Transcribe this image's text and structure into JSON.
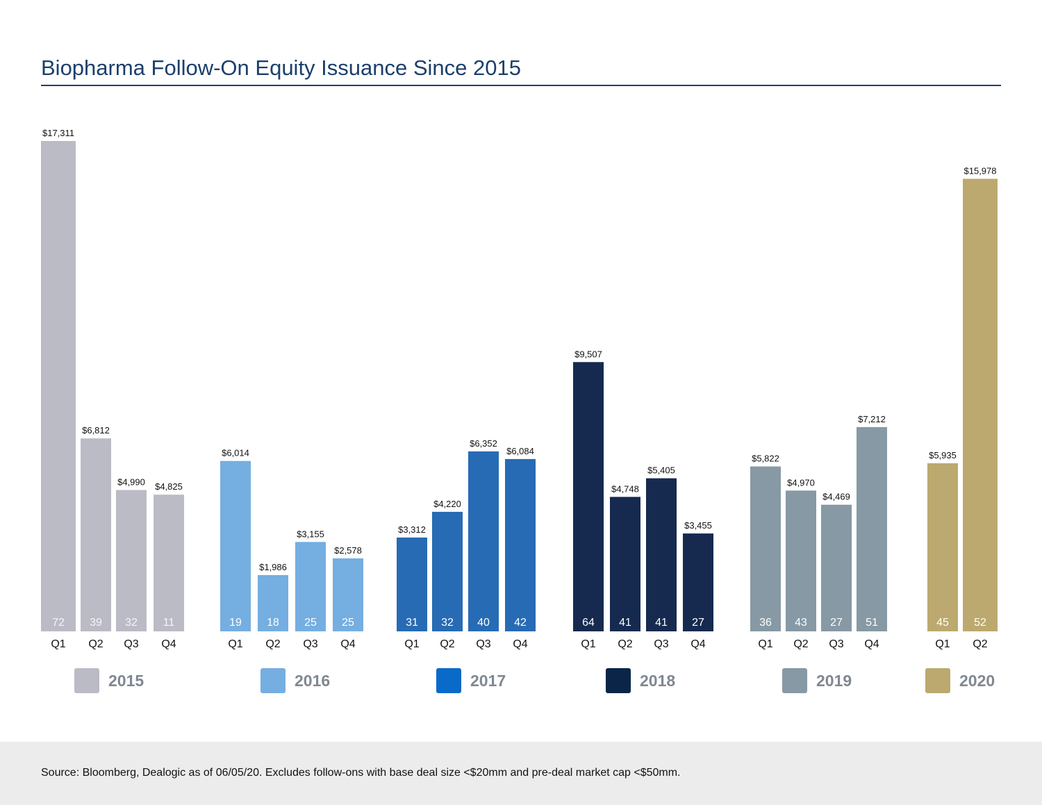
{
  "title": "Biopharma Follow-On Equity Issuance Since 2015",
  "footnote": "Source: Bloomberg, Dealogic as of 06/05/20. Excludes follow-ons with base deal size <$20mm and pre-deal market cap <$50mm.",
  "chart_data": {
    "type": "bar",
    "title": "Biopharma Follow-On Equity Issuance Since 2015",
    "xlabel": "",
    "ylabel": "",
    "ylim": [
      0,
      17311
    ],
    "grid": false,
    "legend": "bottom",
    "groups": [
      {
        "name": "2015",
        "color": "#bbbbc6",
        "bars": [
          {
            "quarter": "Q1",
            "value": 17311,
            "value_label": "$17,311",
            "count": "72"
          },
          {
            "quarter": "Q2",
            "value": 6812,
            "value_label": "$6,812",
            "count": "39"
          },
          {
            "quarter": "Q3",
            "value": 4990,
            "value_label": "$4,990",
            "count": "32"
          },
          {
            "quarter": "Q4",
            "value": 4825,
            "value_label": "$4,825",
            "count": "11"
          }
        ]
      },
      {
        "name": "2016",
        "color": "#75aee0",
        "bars": [
          {
            "quarter": "Q1",
            "value": 6014,
            "value_label": "$6,014",
            "count": "19"
          },
          {
            "quarter": "Q2",
            "value": 1986,
            "value_label": "$1,986",
            "count": "18"
          },
          {
            "quarter": "Q3",
            "value": 3155,
            "value_label": "$3,155",
            "count": "25"
          },
          {
            "quarter": "Q4",
            "value": 2578,
            "value_label": "$2,578",
            "count": "25"
          }
        ]
      },
      {
        "name": "2017",
        "color": "#276bb4",
        "bars": [
          {
            "quarter": "Q1",
            "value": 3312,
            "value_label": "$3,312",
            "count": "31"
          },
          {
            "quarter": "Q2",
            "value": 4220,
            "value_label": "$4,220",
            "count": "32"
          },
          {
            "quarter": "Q3",
            "value": 6352,
            "value_label": "$6,352",
            "count": "40"
          },
          {
            "quarter": "Q4",
            "value": 6084,
            "value_label": "$6,084",
            "count": "42"
          }
        ]
      },
      {
        "name": "2018",
        "color": "#162a50",
        "bars": [
          {
            "quarter": "Q1",
            "value": 9507,
            "value_label": "$9,507",
            "count": "64"
          },
          {
            "quarter": "Q2",
            "value": 4748,
            "value_label": "$4,748",
            "count": "41"
          },
          {
            "quarter": "Q3",
            "value": 5405,
            "value_label": "$5,405",
            "count": "41"
          },
          {
            "quarter": "Q4",
            "value": 3455,
            "value_label": "$3,455",
            "count": "27"
          }
        ]
      },
      {
        "name": "2019",
        "color": "#8699a5",
        "bars": [
          {
            "quarter": "Q1",
            "value": 5822,
            "value_label": "$5,822",
            "count": "36"
          },
          {
            "quarter": "Q2",
            "value": 4970,
            "value_label": "$4,970",
            "count": "43"
          },
          {
            "quarter": "Q3",
            "value": 4469,
            "value_label": "$4,469",
            "count": "27"
          },
          {
            "quarter": "Q4",
            "value": 7212,
            "value_label": "$7,212",
            "count": "51"
          }
        ]
      },
      {
        "name": "2020",
        "color": "#bca96f",
        "bars": [
          {
            "quarter": "Q1",
            "value": 5935,
            "value_label": "$5,935",
            "count": "45"
          },
          {
            "quarter": "Q2",
            "value": 15978,
            "value_label": "$15,978",
            "count": "52"
          }
        ]
      }
    ]
  },
  "legend": {
    "items": [
      {
        "label": "2015",
        "color": "#bbbbc6"
      },
      {
        "label": "2016",
        "color": "#75aee0"
      },
      {
        "label": "2017",
        "color": "#0a6ac8"
      },
      {
        "label": "2018",
        "color": "#0b2548"
      },
      {
        "label": "2019",
        "color": "#8699a5"
      },
      {
        "label": "2020",
        "color": "#bca96f"
      }
    ]
  }
}
